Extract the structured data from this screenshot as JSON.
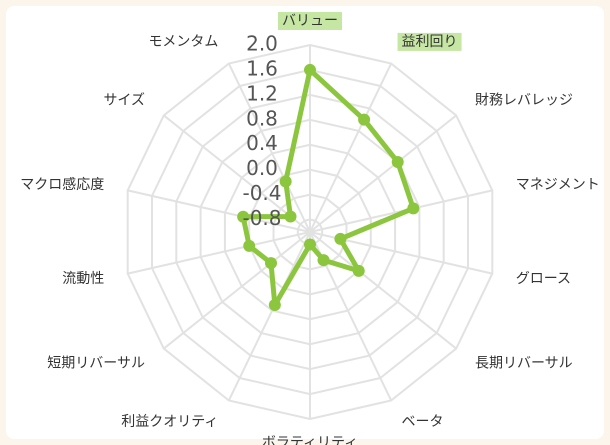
{
  "chart_data": {
    "type": "radar",
    "categories": [
      "バリュー",
      "益利回り",
      "財務レバレッジ",
      "マネジメント",
      "グロース",
      "長期リバーサル",
      "ベータ",
      "ボラティリティ",
      "利益クオリティ",
      "短期リバーサル",
      "流動性",
      "マクロ感応度",
      "サイズ",
      "モメンタム"
    ],
    "values": [
      1.6,
      1.0,
      0.8,
      0.7,
      -0.5,
      0.0,
      -0.5,
      -0.8,
      0.3,
      -0.2,
      0.0,
      0.1,
      -0.6,
      -0.1
    ],
    "color": "#8cc63f",
    "highlight_color": "#c6e6a4",
    "highlight_indices": [
      0,
      1
    ],
    "ylim": [
      -1.0,
      2.0
    ],
    "yticks": [
      {
        "value": 2.0,
        "label": "2.0"
      },
      1.6,
      1.2,
      0.8,
      0.4,
      {
        "value": 0.0,
        "label": "0.0"
      },
      -0.4,
      -0.8
    ],
    "grid": true
  }
}
